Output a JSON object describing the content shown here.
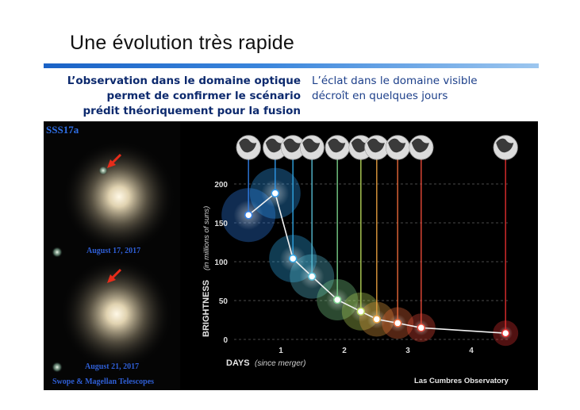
{
  "slide": {
    "title": "Une évolution très rapide",
    "left_note": [
      "L’observation dans le domaine optique",
      "permet de confirmer le scénario",
      "prédit théoriquement pour la fusion"
    ],
    "right_note": [
      "L’éclat dans le domaine visible",
      "décroît en quelques jours"
    ]
  },
  "photos": {
    "source_label": "SSS17a",
    "date_top": "August 17, 2017",
    "date_bottom": "August 21, 2017",
    "telescope_credit": "Swope & Magellan Telescopes"
  },
  "credit": "Las Cumbres Observatory",
  "chart_data": {
    "type": "line",
    "xlabel": "DAYS",
    "xlabel_note": "(since merger)",
    "ylabel": "BRIGHTNESS",
    "ylabel_note": "(in millions of suns)",
    "xlim": [
      0,
      5
    ],
    "ylim": [
      0,
      200
    ],
    "x_ticks": [
      1,
      2,
      3,
      4
    ],
    "y_ticks": [
      0,
      50,
      100,
      150,
      200
    ],
    "grid": true,
    "series": [
      {
        "x": [
          0.49,
          0.91,
          1.19,
          1.49,
          1.89,
          2.26,
          2.51,
          2.84,
          3.21,
          4.54
        ],
        "y": [
          160,
          188,
          104,
          81,
          51,
          36,
          26,
          21,
          15,
          8
        ],
        "colors": [
          "#2f7ee8",
          "#2f9aee",
          "#2fa8e8",
          "#58c0d8",
          "#7ad08a",
          "#b8d85a",
          "#e8a040",
          "#ee6a3a",
          "#ee4a3a",
          "#e63030"
        ]
      }
    ]
  }
}
